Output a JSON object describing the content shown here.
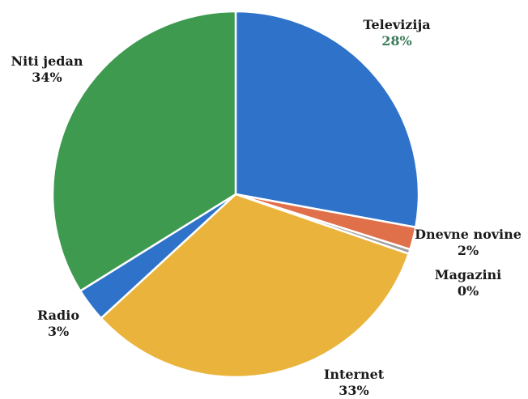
{
  "chart_data": {
    "type": "pie",
    "slices": [
      {
        "label": "Televizija",
        "value": 28,
        "display": "28%",
        "color": "#2e73c9"
      },
      {
        "label": "Dnevne novine",
        "value": 2,
        "display": "2%",
        "color": "#e0704a"
      },
      {
        "label": "Magazini",
        "value": 0.4,
        "display": "0%",
        "color": "#9e9e9e"
      },
      {
        "label": "Internet",
        "value": 33,
        "display": "33%",
        "color": "#eab43c"
      },
      {
        "label": "Radio",
        "value": 3,
        "display": "3%",
        "color": "#2e73c9"
      },
      {
        "label": "Niti jedan",
        "value": 34,
        "display": "34%",
        "color": "#3d9a4f"
      }
    ],
    "start_angle": "12 o'clock",
    "direction": "clockwise",
    "legend": "none",
    "title": ""
  }
}
